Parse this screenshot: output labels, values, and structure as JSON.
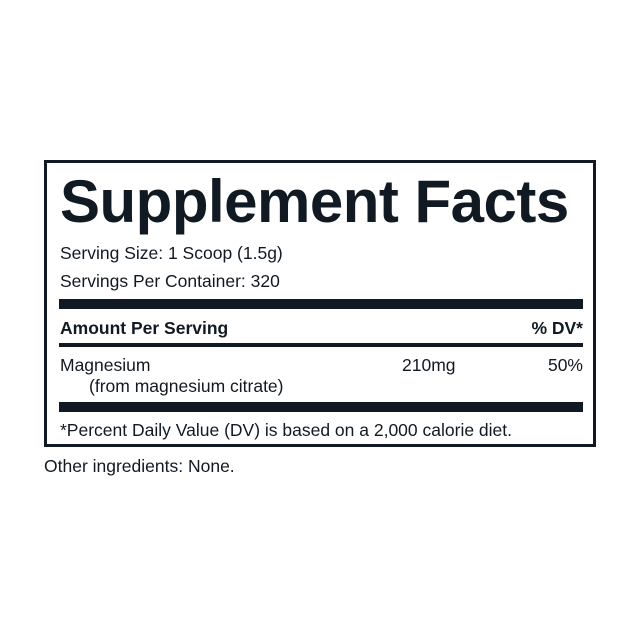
{
  "label": {
    "title": "Supplement Facts",
    "serving_size": "Serving Size: 1 Scoop (1.5g)",
    "servings_per_container": "Servings Per Container: 320",
    "header": {
      "amount": "Amount Per Serving",
      "dv": "% DV*"
    },
    "rows": [
      {
        "name": "Magnesium",
        "source": "(from magnesium citrate)",
        "amount": "210mg",
        "dv": "50%"
      }
    ],
    "footnote": "*Percent Daily Value (DV) is based on a 2,000 calorie diet."
  },
  "other_ingredients": "Other ingredients: None.",
  "colors": {
    "ink": "#111a22",
    "background": "#ffffff"
  }
}
